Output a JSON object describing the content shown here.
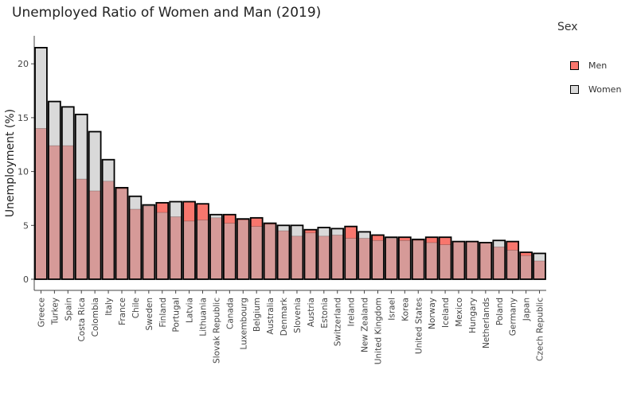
{
  "chart_data": {
    "type": "bar",
    "title": "Unemployed Ratio of Women and Man (2019)",
    "ylabel": "Unemployment (%)",
    "xlabel": "",
    "ylim": [
      0,
      22.6
    ],
    "yticks": [
      0,
      5,
      10,
      15,
      20
    ],
    "grid": false,
    "legend_title": "Sex",
    "legend_position": "right",
    "categories": [
      "Greece",
      "Turkey",
      "Spain",
      "Costa Rica",
      "Colombia",
      "Italy",
      "France",
      "Chile",
      "Sweden",
      "Finland",
      "Portugal",
      "Latvia",
      "Lithuania",
      "Slovak Republic",
      "Canada",
      "Luxembourg",
      "Belgium",
      "Australia",
      "Denmark",
      "Slovenia",
      "Austria",
      "Estonia",
      "Switzerland",
      "Ireland",
      "New Zealand",
      "United Kingdom",
      "Israel",
      "Korea",
      "United States",
      "Norway",
      "Iceland",
      "Mexico",
      "Hungary",
      "Netherlands",
      "Poland",
      "Germany",
      "Japan",
      "Czech Republic"
    ],
    "series": [
      {
        "name": "Men",
        "color": "#f8766d",
        "values": [
          14.0,
          12.4,
          12.4,
          9.3,
          8.2,
          9.1,
          8.5,
          6.5,
          6.8,
          7.1,
          5.8,
          7.2,
          7.0,
          5.7,
          6.0,
          5.6,
          5.7,
          5.2,
          4.5,
          4.0,
          4.6,
          4.0,
          4.1,
          4.9,
          3.8,
          4.1,
          3.8,
          3.9,
          3.7,
          3.9,
          3.9,
          3.5,
          3.5,
          3.4,
          3.0,
          3.5,
          2.5,
          1.7
        ]
      },
      {
        "name": "Women",
        "color": "#d9d9d9",
        "values": [
          21.5,
          16.5,
          16.0,
          15.3,
          13.7,
          11.1,
          8.4,
          7.7,
          6.9,
          6.2,
          7.2,
          5.4,
          5.5,
          6.0,
          5.2,
          5.5,
          4.9,
          5.1,
          5.0,
          5.0,
          4.3,
          4.8,
          4.7,
          3.8,
          4.4,
          3.6,
          3.9,
          3.6,
          3.6,
          3.4,
          3.2,
          3.5,
          3.5,
          3.4,
          3.6,
          2.7,
          2.2,
          2.4
        ]
      }
    ]
  }
}
